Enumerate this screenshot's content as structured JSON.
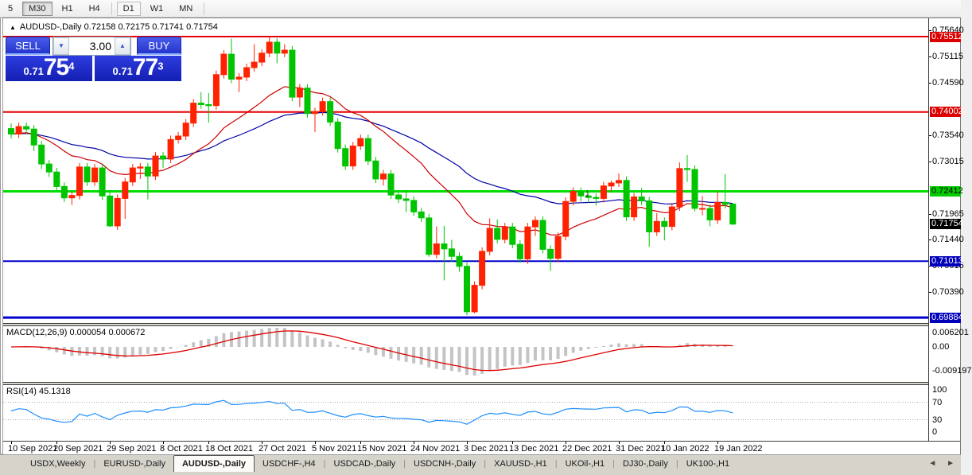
{
  "toolbar": {
    "timeframes": [
      {
        "label": "5",
        "state": "partial"
      },
      {
        "label": "M30",
        "state": "pressed"
      },
      {
        "label": "H1",
        "state": "normal"
      },
      {
        "label": "H4",
        "state": "normal"
      },
      {
        "label": "sep",
        "state": "sep"
      },
      {
        "label": "D1",
        "state": "highlight"
      },
      {
        "label": "W1",
        "state": "normal"
      },
      {
        "label": "MN",
        "state": "normal"
      },
      {
        "label": "sep",
        "state": "sep"
      }
    ]
  },
  "title": {
    "marker": "▲",
    "symbol": "AUDUSD-,Daily",
    "open": "0.72158",
    "high": "0.72175",
    "low": "0.71741",
    "close": "0.71754"
  },
  "trade_panel": {
    "sell_label": "SELL",
    "buy_label": "BUY",
    "volume": "3.00",
    "spin_down": "▼",
    "spin_up": "▲",
    "sell_price": {
      "prefix": "0.71",
      "big": "75",
      "sup": "4"
    },
    "buy_price": {
      "prefix": "0.71",
      "big": "77",
      "sup": "3"
    }
  },
  "colors": {
    "bull": "#ff2200",
    "bear": "#00c400",
    "ma_fast": "#cc0000",
    "ma_slow": "#0000a8",
    "hline_red": "#e60000",
    "hline_green": "#00dd00",
    "hline_blue": "#0000cc",
    "macd_hist": "#c4c4c4",
    "macd_signal": "#dd0000",
    "rsi_line": "#1e8fff",
    "badge_red": "#dd0000",
    "badge_green": "#00cc00",
    "badge_black": "#000000",
    "badge_blue": "#0000bb"
  },
  "price_axis": {
    "plain_ticks": [
      "0.75640",
      "0.75115",
      "0.74590",
      "0.73540",
      "0.73015",
      "0.71965",
      "0.71440",
      "0.70915",
      "0.70390"
    ],
    "badges": [
      {
        "label": "0.75512",
        "price": 0.75512,
        "bg": "badge_red",
        "fg": "#ffffff"
      },
      {
        "label": "0.74002",
        "price": 0.74002,
        "bg": "badge_red",
        "fg": "#ffffff"
      },
      {
        "label": "0.72412",
        "price": 0.72412,
        "bg": "badge_green",
        "fg": "#000000"
      },
      {
        "label": "0.71754",
        "price": 0.71754,
        "bg": "badge_black",
        "fg": "#ffffff"
      },
      {
        "label": "0.71013",
        "price": 0.71013,
        "bg": "badge_blue",
        "fg": "#ffffff"
      },
      {
        "label": "0.69884",
        "price": 0.69884,
        "bg": "badge_blue",
        "fg": "#ffffff"
      }
    ]
  },
  "chart_data": {
    "type": "candlestick",
    "symbol": "AUDUSD",
    "period": "Daily",
    "y_range": [
      0.6955,
      0.7585
    ],
    "hlines": [
      {
        "price": 0.75512,
        "color": "hline_red",
        "w": 2
      },
      {
        "price": 0.74002,
        "color": "hline_red",
        "w": 2
      },
      {
        "price": 0.72412,
        "color": "hline_green",
        "w": 3
      },
      {
        "price": 0.71013,
        "color": "hline_blue",
        "w": 2
      },
      {
        "price": 0.69884,
        "color": "hline_blue",
        "w": 3
      }
    ],
    "annotation": {
      "glyph": "↓",
      "bar_index": 76,
      "price": 0.7231
    },
    "x_labels": [
      {
        "text": "10 Sep 2021",
        "index": 0
      },
      {
        "text": "20 Sep 2021",
        "index": 6
      },
      {
        "text": "29 Sep 2021",
        "index": 13
      },
      {
        "text": "8 Oct 2021",
        "index": 20
      },
      {
        "text": "18 Oct 2021",
        "index": 26
      },
      {
        "text": "27 Oct 2021",
        "index": 33
      },
      {
        "text": "5 Nov 2021",
        "index": 40
      },
      {
        "text": "15 Nov 2021",
        "index": 46
      },
      {
        "text": "24 Nov 2021",
        "index": 53
      },
      {
        "text": "3 Dec 2021",
        "index": 60
      },
      {
        "text": "13 Dec 2021",
        "index": 66
      },
      {
        "text": "22 Dec 2021",
        "index": 73
      },
      {
        "text": "31 Dec 2021",
        "index": 80
      },
      {
        "text": "10 Jan 2022",
        "index": 86
      },
      {
        "text": "19 Jan 2022",
        "index": 93
      }
    ],
    "candles": [
      [
        "10 Sep",
        0.7367,
        0.7377,
        0.7347,
        0.7356
      ],
      [
        "13 Sep",
        0.7356,
        0.7379,
        0.7348,
        0.7371
      ],
      [
        "14 Sep",
        0.7371,
        0.7379,
        0.7356,
        0.7366
      ],
      [
        "15 Sep",
        0.7366,
        0.7374,
        0.7322,
        0.7334
      ],
      [
        "16 Sep",
        0.7334,
        0.7342,
        0.7286,
        0.7296
      ],
      [
        "17 Sep",
        0.7296,
        0.7304,
        0.727,
        0.728
      ],
      [
        "20 Sep",
        0.728,
        0.7288,
        0.7243,
        0.7251
      ],
      [
        "21 Sep",
        0.7251,
        0.7259,
        0.722,
        0.7228
      ],
      [
        "22 Sep",
        0.7228,
        0.7241,
        0.7214,
        0.7233
      ],
      [
        "23 Sep",
        0.7233,
        0.7298,
        0.7225,
        0.729
      ],
      [
        "24 Sep",
        0.729,
        0.7298,
        0.7252,
        0.726
      ],
      [
        "27 Sep",
        0.726,
        0.7296,
        0.7252,
        0.7288
      ],
      [
        "28 Sep",
        0.7288,
        0.7296,
        0.7224,
        0.7232
      ],
      [
        "29 Sep",
        0.7232,
        0.724,
        0.717,
        0.7172
      ],
      [
        "30 Sep",
        0.7172,
        0.7235,
        0.7164,
        0.7227
      ],
      [
        "1 Oct",
        0.7227,
        0.7268,
        0.7186,
        0.726
      ],
      [
        "4 Oct",
        0.726,
        0.7296,
        0.7252,
        0.7288
      ],
      [
        "5 Oct",
        0.7288,
        0.7298,
        0.7266,
        0.729
      ],
      [
        "6 Oct",
        0.729,
        0.7298,
        0.7225,
        0.7272
      ],
      [
        "7 Oct",
        0.7272,
        0.732,
        0.7264,
        0.7312
      ],
      [
        "8 Oct",
        0.7312,
        0.732,
        0.7288,
        0.7306
      ],
      [
        "11 Oct",
        0.7306,
        0.7353,
        0.7298,
        0.7345
      ],
      [
        "12 Oct",
        0.7345,
        0.736,
        0.7337,
        0.7352
      ],
      [
        "13 Oct",
        0.7352,
        0.7386,
        0.7344,
        0.7378
      ],
      [
        "14 Oct",
        0.7378,
        0.7426,
        0.737,
        0.7418
      ],
      [
        "15 Oct",
        0.7418,
        0.744,
        0.7407,
        0.7415
      ],
      [
        "18 Oct",
        0.7415,
        0.7438,
        0.7379,
        0.7413
      ],
      [
        "19 Oct",
        0.7413,
        0.7483,
        0.7405,
        0.7475
      ],
      [
        "20 Oct",
        0.7475,
        0.7524,
        0.7467,
        0.7516
      ],
      [
        "21 Oct",
        0.7516,
        0.7547,
        0.7458,
        0.7466
      ],
      [
        "22 Oct",
        0.7466,
        0.7478,
        0.744,
        0.747
      ],
      [
        "25 Oct",
        0.747,
        0.7497,
        0.7462,
        0.7489
      ],
      [
        "26 Oct",
        0.7489,
        0.7536,
        0.7481,
        0.75
      ],
      [
        "27 Oct",
        0.75,
        0.7526,
        0.7492,
        0.7518
      ],
      [
        "28 Oct",
        0.7518,
        0.7551,
        0.751,
        0.754
      ],
      [
        "29 Oct",
        0.754,
        0.7548,
        0.7498,
        0.7518
      ],
      [
        "1 Nov",
        0.7518,
        0.7536,
        0.751,
        0.7524
      ],
      [
        "2 Nov",
        0.7524,
        0.7532,
        0.7422,
        0.743
      ],
      [
        "3 Nov",
        0.743,
        0.7456,
        0.741,
        0.7448
      ],
      [
        "4 Nov",
        0.7448,
        0.7456,
        0.7389,
        0.7397
      ],
      [
        "5 Nov",
        0.7397,
        0.7409,
        0.736,
        0.7401
      ],
      [
        "8 Nov",
        0.7401,
        0.7429,
        0.7393,
        0.7421
      ],
      [
        "9 Nov",
        0.7421,
        0.7429,
        0.7372,
        0.738
      ],
      [
        "10 Nov",
        0.738,
        0.7388,
        0.7319,
        0.7327
      ],
      [
        "11 Nov",
        0.7327,
        0.7335,
        0.7284,
        0.7292
      ],
      [
        "12 Nov",
        0.7292,
        0.734,
        0.7284,
        0.7332
      ],
      [
        "15 Nov",
        0.7332,
        0.7355,
        0.7324,
        0.7347
      ],
      [
        "16 Nov",
        0.7347,
        0.7355,
        0.7294,
        0.7302
      ],
      [
        "17 Nov",
        0.7302,
        0.731,
        0.7258,
        0.7266
      ],
      [
        "18 Nov",
        0.7266,
        0.7284,
        0.7253,
        0.7276
      ],
      [
        "19 Nov",
        0.7276,
        0.7284,
        0.7226,
        0.7234
      ],
      [
        "22 Nov",
        0.7234,
        0.7242,
        0.7218,
        0.7226
      ],
      [
        "23 Nov",
        0.7226,
        0.7244,
        0.72,
        0.7223
      ],
      [
        "24 Nov",
        0.7223,
        0.7231,
        0.7192,
        0.72
      ],
      [
        "25 Nov",
        0.72,
        0.7208,
        0.718,
        0.7188
      ],
      [
        "26 Nov",
        0.7188,
        0.7196,
        0.711,
        0.7115
      ],
      [
        "29 Nov",
        0.7115,
        0.7171,
        0.7107,
        0.7136
      ],
      [
        "30 Nov",
        0.7136,
        0.7172,
        0.7063,
        0.7126
      ],
      [
        "1 Dec",
        0.7126,
        0.7144,
        0.71,
        0.7111
      ],
      [
        "2 Dec",
        0.7111,
        0.7119,
        0.708,
        0.7091
      ],
      [
        "3 Dec",
        0.7091,
        0.7099,
        0.6993,
        0.7
      ],
      [
        "6 Dec",
        0.7,
        0.7061,
        0.6997,
        0.7053
      ],
      [
        "7 Dec",
        0.7053,
        0.7129,
        0.7045,
        0.7121
      ],
      [
        "8 Dec",
        0.7121,
        0.7187,
        0.7113,
        0.7167
      ],
      [
        "9 Dec",
        0.7167,
        0.7185,
        0.7137,
        0.7145
      ],
      [
        "10 Dec",
        0.7145,
        0.7178,
        0.7137,
        0.717
      ],
      [
        "13 Dec",
        0.717,
        0.7178,
        0.7127,
        0.7135
      ],
      [
        "14 Dec",
        0.7135,
        0.7143,
        0.7098,
        0.7106
      ],
      [
        "15 Dec",
        0.7106,
        0.7178,
        0.7096,
        0.717
      ],
      [
        "16 Dec",
        0.717,
        0.7191,
        0.7152,
        0.7183
      ],
      [
        "17 Dec",
        0.7183,
        0.7191,
        0.7117,
        0.7125
      ],
      [
        "20 Dec",
        0.7125,
        0.7133,
        0.7082,
        0.7107
      ],
      [
        "21 Dec",
        0.7107,
        0.7159,
        0.7099,
        0.7151
      ],
      [
        "22 Dec",
        0.7151,
        0.7229,
        0.7143,
        0.7221
      ],
      [
        "23 Dec",
        0.7221,
        0.7249,
        0.7213,
        0.7241
      ],
      [
        "24 Dec",
        0.7241,
        0.7249,
        0.7221,
        0.7232
      ],
      [
        "27 Dec",
        0.7232,
        0.724,
        0.7218,
        0.7229
      ],
      [
        "28 Dec",
        0.7229,
        0.7237,
        0.7213,
        0.7227
      ],
      [
        "29 Dec",
        0.7227,
        0.726,
        0.7219,
        0.7252
      ],
      [
        "30 Dec",
        0.7252,
        0.7263,
        0.724,
        0.7258
      ],
      [
        "31 Dec",
        0.7258,
        0.7277,
        0.725,
        0.7263
      ],
      [
        "3 Jan",
        0.7263,
        0.7271,
        0.7182,
        0.719
      ],
      [
        "4 Jan",
        0.719,
        0.7238,
        0.7182,
        0.723
      ],
      [
        "5 Jan",
        0.723,
        0.7248,
        0.7214,
        0.7222
      ],
      [
        "6 Jan",
        0.7222,
        0.723,
        0.713,
        0.716
      ],
      [
        "7 Jan",
        0.716,
        0.7198,
        0.7152,
        0.7181
      ],
      [
        "10 Jan",
        0.7181,
        0.7189,
        0.7143,
        0.7171
      ],
      [
        "11 Jan",
        0.7171,
        0.7218,
        0.7163,
        0.721
      ],
      [
        "12 Jan",
        0.721,
        0.7299,
        0.7202,
        0.7287
      ],
      [
        "13 Jan",
        0.7287,
        0.7314,
        0.726,
        0.7285
      ],
      [
        "14 Jan",
        0.7285,
        0.7293,
        0.7201,
        0.7207
      ],
      [
        "17 Jan",
        0.7207,
        0.7232,
        0.7193,
        0.7207
      ],
      [
        "18 Jan",
        0.7207,
        0.7215,
        0.7171,
        0.7184
      ],
      [
        "19 Jan",
        0.7184,
        0.7241,
        0.7176,
        0.7219
      ],
      [
        "20 Jan",
        0.7219,
        0.7276,
        0.7207,
        0.7215
      ],
      [
        "21 Jan",
        0.72158,
        0.72175,
        0.71741,
        0.71754
      ]
    ],
    "moving_averages": [
      {
        "name": "ma-fast",
        "type": "ema",
        "period": 18
      },
      {
        "name": "ma-slow",
        "type": "ema",
        "period": 42
      }
    ],
    "macd": {
      "label": "MACD(12,26,9)",
      "value_main": "0.000054",
      "value_signal": "0.000672",
      "params": [
        12,
        26,
        9
      ],
      "axis_labels": [
        "0.006201",
        "0.00",
        "-0.009197"
      ]
    },
    "rsi": {
      "label": "RSI(14)",
      "value": "45.1318",
      "period": 14,
      "axis_labels": [
        "100",
        "70",
        "30",
        "0"
      ],
      "levels": [
        70,
        30
      ]
    }
  },
  "tabs": {
    "items": [
      "USDX,Weekly",
      "EURUSD-,Daily",
      "AUDUSD-,Daily",
      "USDCHF-,H4",
      "USDCAD-,Daily",
      "USDCNH-,Daily",
      "XAUUSD-,H1",
      "UKOil-,H1",
      "DJ30-,Daily",
      "UK100-,H1"
    ],
    "active_index": 2,
    "scroll_left": "◄",
    "scroll_right": "►"
  }
}
